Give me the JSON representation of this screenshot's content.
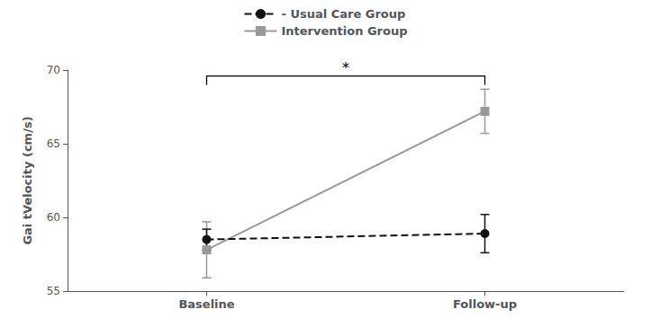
{
  "chart_data": {
    "type": "line",
    "categories": [
      "Baseline",
      "Follow-up"
    ],
    "series": [
      {
        "name": "- Usual Care Group",
        "color": "#111111",
        "values": [
          58.5,
          58.9
        ],
        "errors": [
          0.7,
          1.3
        ],
        "marker": "circle",
        "line_style": "dashed"
      },
      {
        "name": "Intervention Group",
        "color": "#999999",
        "values": [
          57.8,
          67.2
        ],
        "errors": [
          1.9,
          1.5
        ],
        "marker": "square",
        "line_style": "solid"
      }
    ],
    "ylabel": "Gai tVelocity (cm/s)",
    "ylim": [
      55,
      70
    ],
    "yticks": [
      55,
      60,
      65,
      70
    ],
    "annotations": [
      {
        "text": "*",
        "from": "Baseline",
        "to": "Follow-up",
        "y": 69.6
      }
    ],
    "grid": false,
    "legend": "top"
  }
}
